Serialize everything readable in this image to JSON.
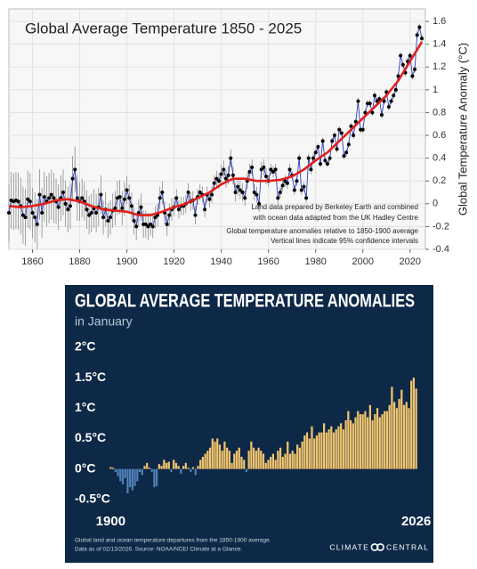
{
  "chart_data": [
    {
      "type": "line",
      "title": "Global Average Temperature 1850 - 2025",
      "ylabel": "Global Temperature  Anomaly  (°C)",
      "annotations": [
        "Land data prepared by Berkeley Earth and combined",
        "with ocean data adapted from the UK Hadley Centre",
        "Global temperature anomalies relative to 1850-1900 average",
        "Vertical lines indicate 95% confidence intervals"
      ],
      "xlim": [
        1850,
        2026.5
      ],
      "xticks": [
        1860,
        1880,
        1900,
        1920,
        1940,
        1960,
        1980,
        2000,
        2020
      ],
      "ylim": [
        -0.4,
        1.71
      ],
      "yticks": [
        -0.4,
        -0.2,
        0,
        0.2,
        0.4,
        0.6,
        0.8,
        1,
        1.2,
        1.4,
        1.6
      ],
      "grid": true,
      "series": [
        {
          "color": "#2a3cc0",
          "marker_color": "#000000",
          "error_color": "#8a8a8a",
          "x": [
            1850,
            1851,
            1852,
            1853,
            1854,
            1855,
            1856,
            1857,
            1858,
            1859,
            1860,
            1861,
            1862,
            1863,
            1864,
            1865,
            1866,
            1867,
            1868,
            1869,
            1870,
            1871,
            1872,
            1873,
            1874,
            1875,
            1876,
            1877,
            1878,
            1879,
            1880,
            1881,
            1882,
            1883,
            1884,
            1885,
            1886,
            1887,
            1888,
            1889,
            1890,
            1891,
            1892,
            1893,
            1894,
            1895,
            1896,
            1897,
            1898,
            1899,
            1900,
            1901,
            1902,
            1903,
            1904,
            1905,
            1906,
            1907,
            1908,
            1909,
            1910,
            1911,
            1912,
            1913,
            1914,
            1915,
            1916,
            1917,
            1918,
            1919,
            1920,
            1921,
            1922,
            1923,
            1924,
            1925,
            1926,
            1927,
            1928,
            1929,
            1930,
            1931,
            1932,
            1933,
            1934,
            1935,
            1936,
            1937,
            1938,
            1939,
            1940,
            1941,
            1942,
            1943,
            1944,
            1945,
            1946,
            1947,
            1948,
            1949,
            1950,
            1951,
            1952,
            1953,
            1954,
            1955,
            1956,
            1957,
            1958,
            1959,
            1960,
            1961,
            1962,
            1963,
            1964,
            1965,
            1966,
            1967,
            1968,
            1969,
            1970,
            1971,
            1972,
            1973,
            1974,
            1975,
            1976,
            1977,
            1978,
            1979,
            1980,
            1981,
            1982,
            1983,
            1984,
            1985,
            1986,
            1987,
            1988,
            1989,
            1990,
            1991,
            1992,
            1993,
            1994,
            1995,
            1996,
            1997,
            1998,
            1999,
            2000,
            2001,
            2002,
            2003,
            2004,
            2005,
            2006,
            2007,
            2008,
            2009,
            2010,
            2011,
            2012,
            2013,
            2014,
            2015,
            2016,
            2017,
            2018,
            2019,
            2020,
            2021,
            2022,
            2023,
            2024,
            2025
          ],
          "values": [
            -0.08,
            0.03,
            0.02,
            0.03,
            0.02,
            -0.02,
            -0.1,
            -0.12,
            0.04,
            0.02,
            -0.08,
            -0.12,
            -0.18,
            0.08,
            -0.08,
            0.06,
            0.02,
            0.05,
            0.08,
            0.05,
            0.02,
            -0.03,
            0.05,
            0.1,
            0.0,
            -0.05,
            -0.02,
            0.22,
            0.3,
            0.05,
            0.02,
            0.05,
            0.02,
            -0.05,
            -0.1,
            -0.08,
            -0.04,
            -0.08,
            -0.03,
            0.08,
            -0.12,
            -0.05,
            -0.15,
            -0.12,
            -0.06,
            -0.04,
            0.05,
            0.06,
            -0.04,
            0.04,
            0.12,
            0.05,
            -0.02,
            -0.15,
            -0.2,
            -0.08,
            -0.03,
            -0.18,
            -0.18,
            -0.2,
            -0.18,
            -0.2,
            -0.12,
            -0.1,
            0.05,
            0.1,
            -0.08,
            -0.18,
            -0.1,
            -0.05,
            -0.03,
            0.05,
            -0.05,
            -0.02,
            -0.02,
            0.0,
            0.1,
            0.02,
            0.03,
            -0.1,
            0.06,
            0.1,
            0.08,
            -0.05,
            0.08,
            0.04,
            0.08,
            0.18,
            0.22,
            0.2,
            0.26,
            0.3,
            0.22,
            0.25,
            0.4,
            0.25,
            0.1,
            0.15,
            0.12,
            0.1,
            0.05,
            0.2,
            0.28,
            0.32,
            0.1,
            0.08,
            0.0,
            0.3,
            0.32,
            0.24,
            0.2,
            0.3,
            0.28,
            0.3,
            0.05,
            0.1,
            0.16,
            0.2,
            0.18,
            0.3,
            0.25,
            0.12,
            0.2,
            0.4,
            0.12,
            0.15,
            0.05,
            0.4,
            0.3,
            0.4,
            0.45,
            0.5,
            0.35,
            0.55,
            0.38,
            0.35,
            0.4,
            0.55,
            0.6,
            0.48,
            0.65,
            0.62,
            0.42,
            0.45,
            0.52,
            0.68,
            0.6,
            0.72,
            0.9,
            0.65,
            0.65,
            0.8,
            0.88,
            0.88,
            0.8,
            0.95,
            0.9,
            0.92,
            0.78,
            0.9,
            0.98,
            0.85,
            0.9,
            0.95,
            1.0,
            1.12,
            1.3,
            1.22,
            1.15,
            1.25,
            1.3,
            1.12,
            1.18,
            1.48,
            1.55,
            1.45
          ],
          "errors": [
            0.25,
            0.25,
            0.25,
            0.25,
            0.25,
            0.25,
            0.25,
            0.25,
            0.25,
            0.25,
            0.22,
            0.22,
            0.22,
            0.22,
            0.22,
            0.22,
            0.22,
            0.22,
            0.22,
            0.22,
            0.2,
            0.2,
            0.2,
            0.2,
            0.2,
            0.2,
            0.2,
            0.2,
            0.2,
            0.2,
            0.17,
            0.17,
            0.17,
            0.17,
            0.17,
            0.17,
            0.17,
            0.17,
            0.17,
            0.17,
            0.15,
            0.15,
            0.15,
            0.15,
            0.15,
            0.15,
            0.15,
            0.15,
            0.15,
            0.15,
            0.12,
            0.12,
            0.12,
            0.12,
            0.12,
            0.12,
            0.12,
            0.12,
            0.12,
            0.12,
            0.1,
            0.1,
            0.1,
            0.1,
            0.1,
            0.1,
            0.1,
            0.1,
            0.1,
            0.1,
            0.08,
            0.08,
            0.08,
            0.08,
            0.08,
            0.08,
            0.08,
            0.08,
            0.08,
            0.08,
            0.07,
            0.07,
            0.07,
            0.07,
            0.07,
            0.07,
            0.07,
            0.07,
            0.07,
            0.07,
            0.08,
            0.08,
            0.08,
            0.08,
            0.08,
            0.08,
            0.08,
            0.08,
            0.08,
            0.08,
            0.07,
            0.07,
            0.07,
            0.07,
            0.07,
            0.07,
            0.07,
            0.07,
            0.07,
            0.07,
            0.05,
            0.05,
            0.05,
            0.05,
            0.05,
            0.05,
            0.05,
            0.05,
            0.05,
            0.05,
            0.04,
            0.04,
            0.04,
            0.04,
            0.04,
            0.04,
            0.04,
            0.04,
            0.04,
            0.04,
            0.03,
            0.03,
            0.03,
            0.03,
            0.03,
            0.03,
            0.03,
            0.03,
            0.03,
            0.03,
            0.03,
            0.03,
            0.03,
            0.03,
            0.03,
            0.03,
            0.03,
            0.03,
            0.03,
            0.03,
            0.03,
            0.03,
            0.03,
            0.03,
            0.03,
            0.03,
            0.03,
            0.03,
            0.03,
            0.03,
            0.03,
            0.03,
            0.03,
            0.03,
            0.03,
            0.03,
            0.03,
            0.03,
            0.03,
            0.03,
            0.03,
            0.03,
            0.03,
            0.03,
            0.03,
            0.03
          ]
        },
        {
          "color": "#e0201c",
          "x": [
            1850,
            1855,
            1860,
            1865,
            1870,
            1875,
            1880,
            1885,
            1890,
            1895,
            1900,
            1905,
            1910,
            1915,
            1920,
            1925,
            1930,
            1935,
            1940,
            1945,
            1950,
            1955,
            1960,
            1965,
            1970,
            1975,
            1980,
            1985,
            1990,
            1995,
            2000,
            2005,
            2010,
            2015,
            2020,
            2025
          ],
          "values": [
            -0.02,
            -0.03,
            -0.02,
            0.0,
            0.03,
            0.04,
            0.02,
            -0.02,
            -0.05,
            -0.06,
            -0.07,
            -0.1,
            -0.1,
            -0.07,
            -0.03,
            0.0,
            0.05,
            0.1,
            0.17,
            0.22,
            0.22,
            0.2,
            0.2,
            0.21,
            0.24,
            0.3,
            0.38,
            0.45,
            0.55,
            0.65,
            0.75,
            0.85,
            0.95,
            1.08,
            1.25,
            1.42
          ]
        }
      ]
    },
    {
      "type": "bar",
      "title": "GLOBAL AVERAGE TEMPERATURE ANOMALIES",
      "subtitle": "in January",
      "footnotes": [
        "Global land and ocean temperature departures from the 1850-1900 average.",
        "Data as of 02/13/2026. Source: NOAA/NCEI Climate at a Glance."
      ],
      "logo": [
        "CLIMATE",
        "CENTRAL"
      ],
      "xlim": [
        1899.5,
        2026.5
      ],
      "xticks": [
        1900,
        2026
      ],
      "ylim": [
        -0.75,
        2.1
      ],
      "yticks": [
        {
          "value": -0.5,
          "label": "-0.5°C"
        },
        {
          "value": 0,
          "label": "0°C"
        },
        {
          "value": 0.5,
          "label": "0.5°C"
        },
        {
          "value": 1,
          "label": "1°C"
        },
        {
          "value": 1.5,
          "label": "1.5°C"
        },
        {
          "value": 2,
          "label": "2°C"
        }
      ],
      "positive_color": "#f2c46d",
      "negative_color": "#4f7fb5",
      "x": [
        1900,
        1901,
        1902,
        1903,
        1904,
        1905,
        1906,
        1907,
        1908,
        1909,
        1910,
        1911,
        1912,
        1913,
        1914,
        1915,
        1916,
        1917,
        1918,
        1919,
        1920,
        1921,
        1922,
        1923,
        1924,
        1925,
        1926,
        1927,
        1928,
        1929,
        1930,
        1931,
        1932,
        1933,
        1934,
        1935,
        1936,
        1937,
        1938,
        1939,
        1940,
        1941,
        1942,
        1943,
        1944,
        1945,
        1946,
        1947,
        1948,
        1949,
        1950,
        1951,
        1952,
        1953,
        1954,
        1955,
        1956,
        1957,
        1958,
        1959,
        1960,
        1961,
        1962,
        1963,
        1964,
        1965,
        1966,
        1967,
        1968,
        1969,
        1970,
        1971,
        1972,
        1973,
        1974,
        1975,
        1976,
        1977,
        1978,
        1979,
        1980,
        1981,
        1982,
        1983,
        1984,
        1985,
        1986,
        1987,
        1988,
        1989,
        1990,
        1991,
        1992,
        1993,
        1994,
        1995,
        1996,
        1997,
        1998,
        1999,
        2000,
        2001,
        2002,
        2003,
        2004,
        2005,
        2006,
        2007,
        2008,
        2009,
        2010,
        2011,
        2012,
        2013,
        2014,
        2015,
        2016,
        2017,
        2018,
        2019,
        2020,
        2021,
        2022,
        2023,
        2024,
        2025,
        2026
      ],
      "values": [
        0.03,
        0.02,
        -0.05,
        -0.12,
        -0.2,
        -0.25,
        -0.15,
        -0.4,
        -0.3,
        -0.35,
        -0.28,
        -0.2,
        -0.05,
        -0.1,
        0.05,
        0.1,
        0.02,
        -0.05,
        -0.3,
        -0.28,
        0.08,
        0.05,
        0.15,
        0.1,
        0.12,
        -0.05,
        0.15,
        0.1,
        0.05,
        -0.08,
        0.05,
        0.1,
        0.02,
        -0.05,
        0.03,
        -0.1,
        0.05,
        0.15,
        0.2,
        0.25,
        0.3,
        0.35,
        0.5,
        0.45,
        0.5,
        0.4,
        0.3,
        0.45,
        0.35,
        0.3,
        0.1,
        0.25,
        0.3,
        0.35,
        0.2,
        0.15,
        -0.05,
        0.3,
        0.45,
        0.35,
        0.3,
        0.35,
        0.3,
        0.25,
        0.1,
        0.15,
        0.2,
        0.25,
        0.15,
        0.3,
        0.35,
        0.2,
        0.25,
        0.45,
        0.25,
        0.3,
        0.25,
        0.4,
        0.35,
        0.45,
        0.55,
        0.6,
        0.5,
        0.7,
        0.5,
        0.55,
        0.6,
        0.6,
        0.75,
        0.6,
        0.65,
        0.7,
        0.6,
        0.65,
        0.7,
        0.75,
        0.65,
        0.8,
        0.95,
        0.8,
        0.75,
        0.85,
        0.95,
        0.9,
        0.9,
        0.95,
        0.85,
        1.05,
        0.8,
        0.9,
        1.0,
        0.85,
        0.9,
        0.95,
        0.95,
        1.05,
        1.35,
        1.1,
        1.0,
        1.15,
        1.3,
        1.05,
        1.1,
        1.0,
        1.45,
        1.5,
        1.32
      ]
    }
  ]
}
